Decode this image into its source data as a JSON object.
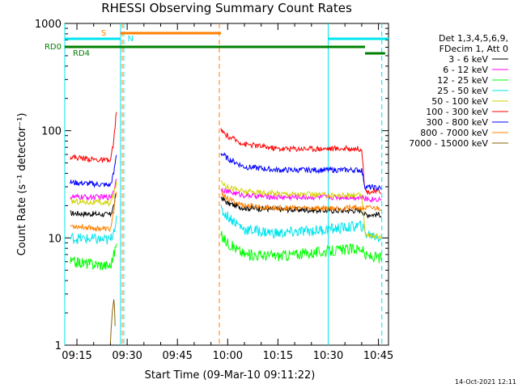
{
  "chart_data": {
    "type": "line",
    "title": "RHESSI Observing Summary Count Rates",
    "xlabel": "Start Time (09-Mar-10 09:11:22)",
    "ylabel": "Count Rate (s⁻¹ detector⁻¹)",
    "x_unit": "minutes",
    "xlim": [
      "09:11:22",
      "10:48:00"
    ],
    "ylim": [
      1,
      1000
    ],
    "yscale": "log",
    "x_ticks": [
      "09:15",
      "09:30",
      "09:45",
      "10:00",
      "10:15",
      "10:30",
      "10:45"
    ],
    "y_ticks": [
      "1",
      "10",
      "100",
      "1000"
    ],
    "grid": false,
    "legend_position": "right",
    "legend_header": [
      "Det 1,3,4,5,6,9,",
      "FDecim 1, Att 0"
    ],
    "timestamp": "14-Oct-2021 12:11",
    "flags": [
      {
        "label": "S",
        "color": "#ff8000",
        "segments": [
          [
            "09:28",
            "09:58"
          ]
        ]
      },
      {
        "label": "N",
        "color": "#00e5ee",
        "segments": [
          [
            "09:11:22",
            "09:28"
          ],
          [
            "10:30",
            "10:48"
          ]
        ]
      },
      {
        "label": "RD0",
        "color": "#008000",
        "segments": [
          [
            "09:11:22",
            "10:41"
          ]
        ]
      },
      {
        "label": "RD4",
        "color": "#008000",
        "segments": [
          [
            "10:41",
            "10:47"
          ]
        ]
      }
    ],
    "vertical_markers": [
      {
        "time": "09:11:22",
        "color": "#00e5ee",
        "style": "solid"
      },
      {
        "time": "09:28:00",
        "color": "#00e5ee",
        "style": "solid"
      },
      {
        "time": "09:29:00",
        "color": "#00e5ee",
        "style": "dashed"
      },
      {
        "time": "09:28:30",
        "color": "#ff8000",
        "style": "dashed"
      },
      {
        "time": "09:57:30",
        "color": "#ff8000",
        "style": "dashed"
      },
      {
        "time": "10:30:00",
        "color": "#00e5ee",
        "style": "solid"
      },
      {
        "time": "10:46:00",
        "color": "#00e5ee",
        "style": "dashed"
      }
    ],
    "gaps": [
      [
        "09:27",
        "09:58"
      ]
    ],
    "series": [
      {
        "name": "3 - 6 keV",
        "color": "#000000",
        "x": [
          "09:13",
          "09:25",
          "09:26",
          "09:27",
          "09:58",
          "10:00",
          "10:05",
          "10:15",
          "10:30",
          "10:40",
          "10:41",
          "10:46"
        ],
        "y": [
          17,
          16.5,
          20,
          28,
          24,
          21,
          19,
          18.5,
          18,
          18,
          16.5,
          16.5
        ]
      },
      {
        "name": "6 - 12 keV",
        "color": "#ff00ff",
        "x": [
          "09:13",
          "09:25",
          "09:26",
          "09:27",
          "09:58",
          "10:00",
          "10:05",
          "10:15",
          "10:30",
          "10:40",
          "10:41",
          "10:46"
        ],
        "y": [
          24,
          24,
          28,
          38,
          29,
          27,
          25,
          24,
          24,
          24,
          23,
          23
        ]
      },
      {
        "name": "12 - 25 keV",
        "color": "#00ff00",
        "x": [
          "09:13",
          "09:25",
          "09:26",
          "09:27",
          "09:58",
          "10:00",
          "10:05",
          "10:15",
          "10:30",
          "10:40",
          "10:41",
          "10:46"
        ],
        "y": [
          6,
          5.5,
          7,
          9,
          10.5,
          9,
          7,
          6.8,
          7.5,
          8,
          6.8,
          6.5
        ]
      },
      {
        "name": "25 - 50 keV",
        "color": "#00e5ee",
        "x": [
          "09:13",
          "09:25",
          "09:26",
          "09:27",
          "09:58",
          "10:00",
          "10:05",
          "10:15",
          "10:30",
          "10:40",
          "10:41",
          "10:46"
        ],
        "y": [
          10,
          9.5,
          12,
          16,
          18,
          16,
          12,
          11,
          12,
          13,
          11,
          10
        ]
      },
      {
        "name": "50 - 100 keV",
        "color": "#d2d200",
        "x": [
          "09:13",
          "09:25",
          "09:26",
          "09:27",
          "09:58",
          "10:00",
          "10:05",
          "10:15",
          "10:30",
          "10:40",
          "10:41",
          "10:46"
        ],
        "y": [
          22,
          21,
          26,
          34,
          34,
          30,
          27,
          26,
          25,
          25,
          11,
          10
        ]
      },
      {
        "name": "100 - 300 keV",
        "color": "#ff0000",
        "x": [
          "09:13",
          "09:25",
          "09:26",
          "09:27",
          "09:58",
          "10:00",
          "10:05",
          "10:15",
          "10:30",
          "10:40",
          "10:41",
          "10:46"
        ],
        "y": [
          57,
          52,
          80,
          185,
          100,
          88,
          75,
          68,
          68,
          68,
          27,
          27
        ]
      },
      {
        "name": "300 - 800 keV",
        "color": "#0000ff",
        "x": [
          "09:13",
          "09:25",
          "09:26",
          "09:27",
          "09:58",
          "10:00",
          "10:05",
          "10:15",
          "10:30",
          "10:40",
          "10:41",
          "10:46"
        ],
        "y": [
          33,
          31,
          40,
          68,
          62,
          55,
          46,
          43,
          43,
          43,
          30,
          29
        ]
      },
      {
        "name": "800 - 7000 keV",
        "color": "#ff8000",
        "x": [
          "09:13",
          "09:25",
          "09:26",
          "09:27",
          "09:58",
          "10:00",
          "10:05",
          "10:15",
          "10:30",
          "10:40",
          "10:41",
          "10:46"
        ],
        "y": [
          13,
          12,
          18,
          30,
          27,
          23,
          20,
          19,
          19,
          19,
          19,
          19
        ]
      },
      {
        "name": "7000 - 15000 keV",
        "color": "#8b6508",
        "x": [
          "09:25:00",
          "09:25:30",
          "09:26:00",
          "09:26:30"
        ],
        "y": [
          1,
          1.8,
          2.7,
          1.5
        ]
      }
    ]
  }
}
